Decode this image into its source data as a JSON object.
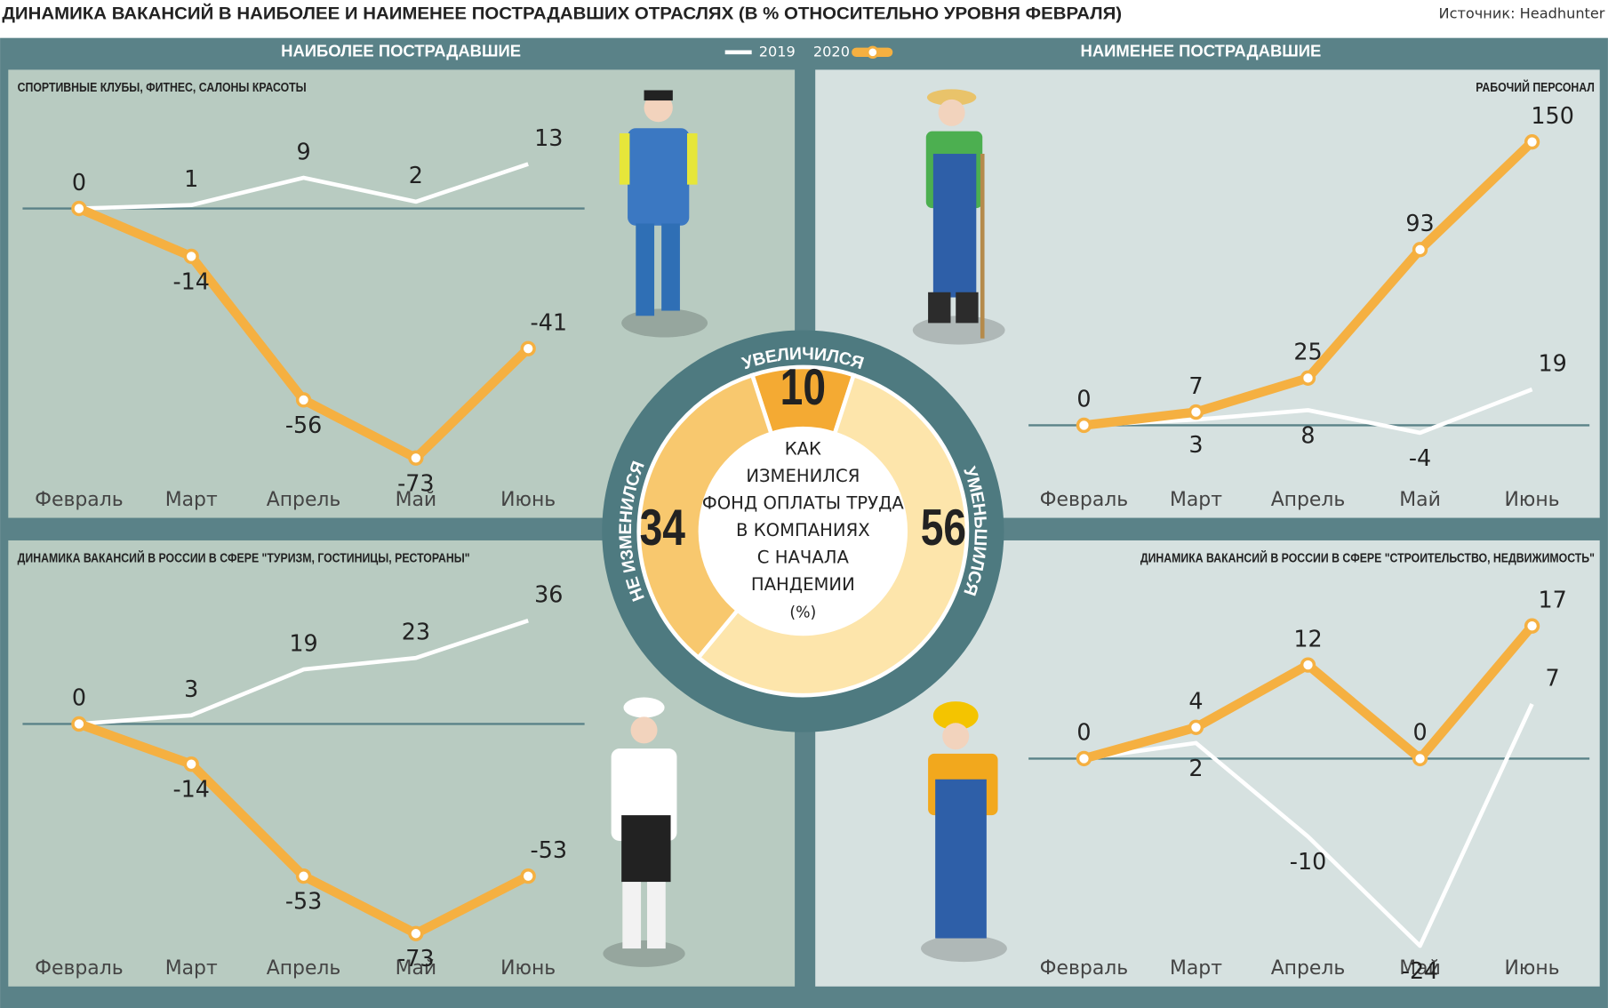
{
  "title": "ДИНАМИКА ВАКАНСИЙ В НАИБОЛЕЕ И НАИМЕНЕЕ ПОСТРАДАВШИХ ОТРАСЛЯХ (В % ОТНОСИТЕЛЬНО УРОВНЯ ФЕВРАЛЯ)",
  "source": "Источник: Headhunter",
  "sections": [
    "НАИБОЛЕЕ ПОСТРАДАВШИЕ",
    "НАИМЕНЕЕ ПОСТРАДАВШИЕ"
  ],
  "chart_data": [
    {
      "type": "line",
      "title": "СПОРТИВНЫЕ КЛУБЫ, ФИТНЕС, САЛОНЫ КРАСОТЫ",
      "categories": [
        "Февраль",
        "Март",
        "Апрель",
        "Май",
        "Июнь"
      ],
      "ylim": [
        -80,
        25
      ],
      "series": [
        {
          "name": "2019",
          "color": "#ffffff",
          "values": [
            0,
            1,
            9,
            2,
            13
          ]
        },
        {
          "name": "2020",
          "color": "#f5b041",
          "values": [
            0,
            -14,
            -56,
            -73,
            -41
          ]
        }
      ]
    },
    {
      "type": "line",
      "title": "РАБОЧИЙ ПЕРСОНАЛ",
      "categories": [
        "Февраль",
        "Март",
        "Апрель",
        "Май",
        "Июнь"
      ],
      "ylim": [
        -30,
        160
      ],
      "series": [
        {
          "name": "2019",
          "color": "#ffffff",
          "values": [
            0,
            3,
            8,
            -4,
            19
          ]
        },
        {
          "name": "2020",
          "color": "#f5b041",
          "values": [
            0,
            7,
            25,
            93,
            150
          ]
        }
      ]
    },
    {
      "type": "line",
      "title": "ДИНАМИКА ВАКАНСИЙ В РОССИИ В СФЕРЕ \"ТУРИЗМ, ГОСТИНИЦЫ, РЕСТОРАНЫ\"",
      "categories": [
        "Февраль",
        "Март",
        "Апрель",
        "Май",
        "Июнь"
      ],
      "ylim": [
        -80,
        45
      ],
      "series": [
        {
          "name": "2019",
          "color": "#ffffff",
          "values": [
            0,
            3,
            19,
            23,
            36
          ]
        },
        {
          "name": "2020",
          "color": "#f5b041",
          "values": [
            0,
            -14,
            -53,
            -73,
            -53
          ]
        }
      ]
    },
    {
      "type": "line",
      "title": "ДИНАМИКА ВАКАНСИЙ В РОССИИ В СФЕРЕ \"СТРОИТЕЛЬСТВО, НЕДВИЖИМОСТЬ\"",
      "categories": [
        "Февраль",
        "Март",
        "Апрель",
        "Май",
        "Июнь"
      ],
      "ylim": [
        -25,
        21
      ],
      "series": [
        {
          "name": "2019",
          "color": "#ffffff",
          "values": [
            0,
            2,
            -10,
            -24,
            7
          ]
        },
        {
          "name": "2020",
          "color": "#f5b041",
          "values": [
            0,
            4,
            12,
            0,
            17
          ]
        }
      ]
    },
    {
      "type": "pie",
      "title_lines": [
        "КАК",
        "ИЗМЕНИЛСЯ",
        "ФОНД ОПЛАТЫ ТРУДА",
        "В КОМПАНИЯХ",
        "С НАЧАЛА",
        "ПАНДЕМИИ",
        "(%)"
      ],
      "categories": [
        "УВЕЛИЧИЛСЯ",
        "УМЕНЬШИЛСЯ",
        "НЕ ИЗМЕНИЛСЯ"
      ],
      "values": [
        10,
        56,
        34
      ],
      "colors": [
        "#f4aa33",
        "#fde5ab",
        "#f8c86e"
      ]
    }
  ]
}
